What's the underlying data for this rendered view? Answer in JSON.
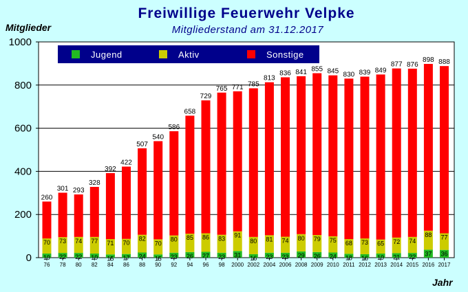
{
  "chart_data": {
    "type": "bar",
    "stacked": true,
    "title": "Freiwillige Feuerwehr Velpke",
    "subtitle": "Mitgliederstand am 31.12.2017",
    "ylabel": "Mitglieder",
    "xlabel": "Jahr",
    "ylim": [
      0,
      1000
    ],
    "yticks": [
      0,
      200,
      400,
      600,
      800,
      1000
    ],
    "ytick_labels": [
      "0",
      "200",
      "400",
      "600",
      "800",
      "1000"
    ],
    "grid": true,
    "legend_position": "top",
    "categories": [
      "76",
      "78",
      "80",
      "82",
      "84",
      "86",
      "88",
      "90",
      "92",
      "94",
      "96",
      "98",
      "2000",
      "2002",
      "2004",
      "2006",
      "2008",
      "2009",
      "2010",
      "2011",
      "2012",
      "2013",
      "2014",
      "2015",
      "2016",
      "2017"
    ],
    "series": [
      {
        "name": "Jugend",
        "color": "#22bb22",
        "values": [
          19,
          22,
          22,
          19,
          15,
          17,
          24,
          15,
          23,
          26,
          27,
          23,
          31,
          16,
          23,
          23,
          29,
          26,
          24,
          18,
          16,
          19,
          21,
          22,
          37,
          36
        ]
      },
      {
        "name": "Aktiv",
        "color": "#cccc00",
        "values": [
          70,
          73,
          74,
          77,
          71,
          70,
          82,
          70,
          80,
          85,
          86,
          83,
          91,
          80,
          81,
          74,
          80,
          79,
          75,
          68,
          73,
          65,
          72,
          74,
          88,
          77
        ]
      },
      {
        "name": "Sonstige",
        "color": "#ff0000",
        "values": [
          171,
          206,
          197,
          232,
          306,
          335,
          401,
          455,
          483,
          547,
          616,
          659,
          649,
          689,
          709,
          739,
          732,
          750,
          746,
          744,
          750,
          765,
          784,
          780,
          773,
          775
        ]
      }
    ],
    "totals": [
      260,
      301,
      293,
      328,
      392,
      422,
      507,
      540,
      586,
      658,
      729,
      765,
      771,
      785,
      813,
      836,
      841,
      855,
      845,
      830,
      839,
      849,
      877,
      876,
      898,
      888
    ],
    "colors": {
      "background": "#ccffff",
      "title": "#00008b",
      "legend_bg": "#00008b"
    }
  }
}
